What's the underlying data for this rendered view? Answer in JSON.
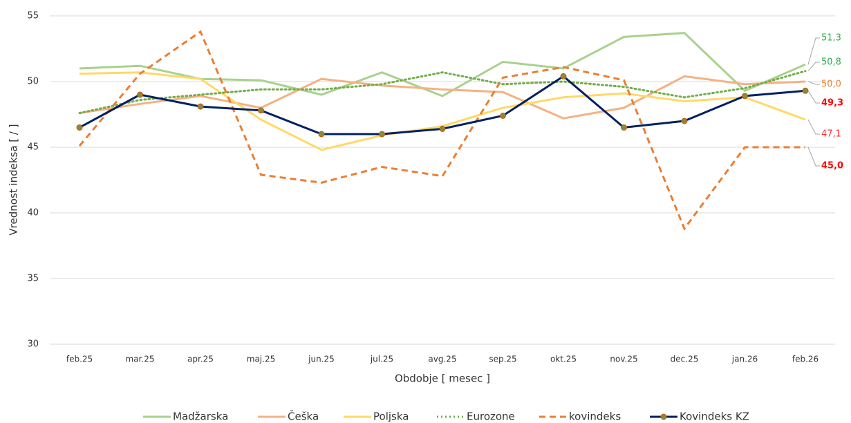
{
  "chart_data": {
    "type": "line",
    "x_label": "Obdobje [ mesec ]",
    "y_label": "Vrednost indeksa [ / ]",
    "categories": [
      "feb.25",
      "mar.25",
      "apr.25",
      "maj.25",
      "jun.25",
      "jul.25",
      "avg.25",
      "sep.25",
      "okt.25",
      "nov.25",
      "dec.25",
      "jan.26",
      "feb.26"
    ],
    "ylim": [
      30,
      55
    ],
    "yticks": [
      30,
      35,
      40,
      45,
      50,
      55
    ],
    "grid": true,
    "legend": "bottom",
    "series": [
      {
        "name": "Madžarska",
        "color": "#a9d18e",
        "dash": "solid",
        "label_color": "#2eaa4a",
        "values": [
          51.0,
          51.2,
          50.2,
          50.1,
          49.0,
          50.7,
          48.9,
          51.5,
          51.0,
          53.4,
          53.7,
          49.3,
          51.3
        ],
        "value_labels": [
          null,
          null,
          null,
          null,
          null,
          null,
          null,
          null,
          null,
          null,
          null,
          null,
          "51,3"
        ]
      },
      {
        "name": "Češka",
        "color": "#f4b183",
        "dash": "solid",
        "label_color": "#ed7d31",
        "values": [
          47.6,
          48.3,
          48.9,
          48.0,
          50.2,
          49.7,
          49.4,
          49.2,
          47.2,
          48.0,
          50.4,
          49.8,
          50.0
        ],
        "value_labels": [
          null,
          null,
          null,
          null,
          null,
          null,
          null,
          null,
          null,
          null,
          null,
          null,
          "50,0"
        ]
      },
      {
        "name": "Poljska",
        "color": "#ffd966",
        "dash": "solid",
        "label_color": "#ff2a2a",
        "values": [
          50.6,
          50.7,
          50.2,
          47.1,
          44.8,
          45.9,
          46.6,
          48.0,
          48.8,
          49.1,
          48.5,
          48.8,
          47.1
        ],
        "value_labels": [
          null,
          null,
          null,
          null,
          null,
          null,
          null,
          null,
          null,
          null,
          null,
          null,
          "47,1"
        ]
      },
      {
        "name": "Eurozone",
        "color": "#70ad47",
        "dash": "dot",
        "label_color": "#2eaa4a",
        "values": [
          47.6,
          48.6,
          49.0,
          49.4,
          49.4,
          49.8,
          50.7,
          49.8,
          50.0,
          49.6,
          48.8,
          49.5,
          50.8
        ],
        "value_labels": [
          null,
          null,
          null,
          null,
          null,
          null,
          null,
          null,
          null,
          null,
          null,
          null,
          "50,8"
        ]
      },
      {
        "name": "kovindeks",
        "color": "#ed7d31",
        "dash": "dash",
        "label_color": "#ff0000",
        "bold": true,
        "values": [
          45.1,
          50.6,
          53.8,
          42.9,
          42.3,
          43.5,
          42.8,
          50.3,
          51.1,
          50.1,
          38.8,
          45.0,
          45.0
        ],
        "value_labels": [
          null,
          null,
          null,
          null,
          null,
          null,
          null,
          null,
          null,
          null,
          null,
          null,
          "45,0"
        ]
      },
      {
        "name": "Kovindeks KZ",
        "color": "#002060",
        "dash": "solid",
        "markers": true,
        "label_color": "#ff0000",
        "bold": true,
        "values": [
          46.5,
          49.0,
          48.1,
          47.8,
          46.0,
          46.0,
          46.4,
          47.4,
          50.4,
          46.5,
          47.0,
          48.9,
          49.3
        ],
        "value_labels": [
          null,
          null,
          null,
          null,
          null,
          null,
          null,
          null,
          null,
          null,
          null,
          null,
          "49,3"
        ]
      }
    ]
  }
}
